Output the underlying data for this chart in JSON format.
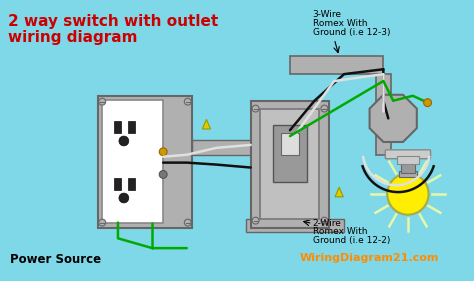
{
  "bg_color": "#7fd8e8",
  "title_line1": "2 way switch with outlet",
  "title_line2": "wiring diagram",
  "title_color": "#cc0000",
  "title_fontsize": 11,
  "label_3wire": "3-Wire\nRomex With\nGround (i.e 12-3)",
  "label_2wire": "2-Wire\nRomex With\nGround (i.e 12-2)",
  "label_power": "Power Source",
  "label_site": "WiringDiagram21.com",
  "label_site_color": "#ff8c00",
  "wire_black": "#111111",
  "wire_white": "#e0e0e0",
  "wire_green": "#00aa00",
  "wire_gray": "#888888",
  "box_lgray": "#b0b0b0",
  "box_dgray": "#666666",
  "light_yellow": "#ffee00",
  "wirenut_yellow": "#cccc00"
}
